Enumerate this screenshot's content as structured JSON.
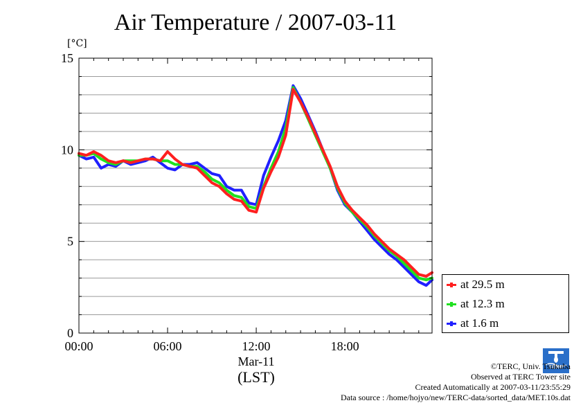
{
  "title": "Air Temperature / 2007-03-11",
  "unit_label": "[°C]",
  "x_axis": {
    "date_label": "Mar-11",
    "unit_label": "(LST)"
  },
  "legend": [
    {
      "label": "at 29.5 m",
      "color": "#ff2020"
    },
    {
      "label": "at 12.3 m",
      "color": "#20e020"
    },
    {
      "label": "at 1.6 m",
      "color": "#2020ff"
    }
  ],
  "footer": {
    "copyright": "©TERC, Univ. Tsukuba",
    "site": "Observed at TERC Tower site",
    "created": "Created Automatically at 2007-03-11/23:55:29",
    "source": "Data source : /home/hojyo/new/TERC-data/sorted_data/MET.10s.dat"
  },
  "logo": {
    "text": "TERC",
    "icon": "terc-logo-icon"
  },
  "chart_data": {
    "type": "line",
    "title": "Air Temperature / 2007-03-11",
    "ylabel": "[°C]",
    "xlabel": "(LST)",
    "x_unit": "hours LST",
    "xlim": [
      0,
      23.9
    ],
    "ylim": [
      0,
      15
    ],
    "y_ticks": [
      0,
      5,
      10,
      15
    ],
    "x_ticks": [
      {
        "value": 0,
        "label": "00:00"
      },
      {
        "value": 6,
        "label": "06:00"
      },
      {
        "value": 12,
        "label": "12:00"
      },
      {
        "value": 18,
        "label": "18:00"
      }
    ],
    "grid": true,
    "legend_position": "right",
    "x": [
      0,
      0.5,
      1,
      1.5,
      2,
      2.5,
      3,
      3.5,
      4,
      4.5,
      5,
      5.5,
      6,
      6.5,
      7,
      7.5,
      8,
      8.5,
      9,
      9.5,
      10,
      10.5,
      11,
      11.5,
      12,
      12.5,
      13,
      13.5,
      14,
      14.5,
      15,
      15.5,
      16,
      16.5,
      17,
      17.5,
      18,
      18.5,
      19,
      19.5,
      20,
      20.5,
      21,
      21.5,
      22,
      22.5,
      23,
      23.5,
      23.9
    ],
    "series": [
      {
        "name": "at 29.5 m",
        "color": "#ff2020",
        "values": [
          9.8,
          9.7,
          9.9,
          9.7,
          9.4,
          9.3,
          9.4,
          9.3,
          9.4,
          9.5,
          9.5,
          9.4,
          9.9,
          9.5,
          9.2,
          9.1,
          9.0,
          8.6,
          8.2,
          8.0,
          7.6,
          7.3,
          7.2,
          6.7,
          6.6,
          7.9,
          8.8,
          9.6,
          10.8,
          13.3,
          12.6,
          11.8,
          10.9,
          10.0,
          9.1,
          8.0,
          7.2,
          6.7,
          6.3,
          5.9,
          5.4,
          5.0,
          4.6,
          4.3,
          4.0,
          3.6,
          3.2,
          3.1,
          3.3
        ]
      },
      {
        "name": "at 12.3 m",
        "color": "#20e020",
        "values": [
          9.7,
          9.7,
          9.8,
          9.5,
          9.3,
          9.2,
          9.4,
          9.4,
          9.4,
          9.5,
          9.5,
          9.4,
          9.4,
          9.2,
          9.2,
          9.1,
          9.1,
          8.8,
          8.4,
          8.2,
          7.8,
          7.5,
          7.4,
          6.9,
          6.8,
          8.0,
          9.0,
          9.9,
          11.2,
          13.4,
          12.6,
          11.7,
          10.8,
          9.9,
          9.0,
          7.9,
          7.1,
          6.6,
          6.2,
          5.8,
          5.3,
          4.9,
          4.5,
          4.2,
          3.8,
          3.4,
          3.0,
          2.9,
          3.0
        ]
      },
      {
        "name": "at 1.6 m",
        "color": "#2020ff",
        "values": [
          9.7,
          9.5,
          9.6,
          9.0,
          9.2,
          9.1,
          9.4,
          9.2,
          9.3,
          9.4,
          9.6,
          9.3,
          9.0,
          8.9,
          9.2,
          9.2,
          9.3,
          9.0,
          8.7,
          8.6,
          8.0,
          7.8,
          7.8,
          7.1,
          7.0,
          8.6,
          9.6,
          10.5,
          11.6,
          13.5,
          12.8,
          11.9,
          11.0,
          10.0,
          9.0,
          7.8,
          7.0,
          6.6,
          6.1,
          5.6,
          5.1,
          4.7,
          4.3,
          4.0,
          3.6,
          3.2,
          2.8,
          2.6,
          2.9
        ]
      }
    ]
  }
}
